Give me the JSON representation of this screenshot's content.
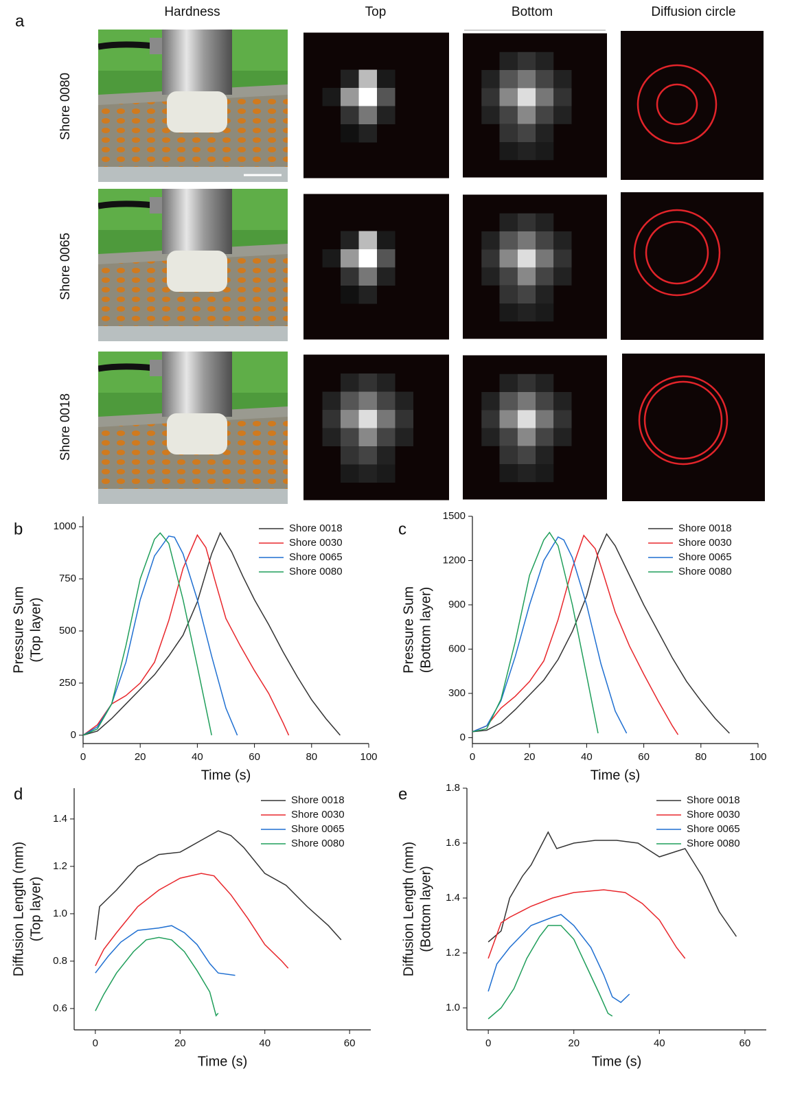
{
  "panel_a": {
    "label": "a",
    "columns": [
      "Hardness",
      "Top",
      "Bottom",
      "Diffusion circle"
    ],
    "rows": [
      "Shore 0080",
      "Shore 0065",
      "Shore 0018"
    ]
  },
  "chart_data": [
    {
      "type": "line",
      "panel_label": "b",
      "xlabel": "Time (s)",
      "ylabel": [
        "Pressure Sum",
        "(Top layer)"
      ],
      "xlim": [
        0,
        100
      ],
      "xticks": [
        0,
        20,
        40,
        60,
        80,
        100
      ],
      "ylim": [
        -40,
        1050
      ],
      "yticks": [
        0,
        250,
        500,
        750,
        1000
      ],
      "legend": "upper right",
      "series": [
        {
          "name": "Shore 0018",
          "color": "#333333",
          "x": [
            0,
            5,
            10,
            15,
            20,
            25,
            30,
            35,
            40,
            45,
            48,
            52,
            56,
            60,
            65,
            70,
            75,
            80,
            85,
            90
          ],
          "values": [
            0,
            20,
            80,
            150,
            220,
            290,
            380,
            480,
            640,
            870,
            970,
            880,
            760,
            650,
            530,
            400,
            280,
            170,
            80,
            0
          ]
        },
        {
          "name": "Shore 0030",
          "color": "#e8262b",
          "x": [
            0,
            5,
            10,
            15,
            20,
            25,
            30,
            35,
            40,
            43,
            46,
            50,
            55,
            60,
            65,
            70,
            72
          ],
          "values": [
            0,
            50,
            150,
            190,
            250,
            350,
            550,
            800,
            960,
            900,
            750,
            560,
            430,
            310,
            200,
            60,
            0
          ]
        },
        {
          "name": "Shore 0065",
          "color": "#1f6fd1",
          "x": [
            0,
            5,
            10,
            15,
            20,
            25,
            30,
            32,
            35,
            40,
            45,
            50,
            54
          ],
          "values": [
            0,
            40,
            150,
            350,
            650,
            860,
            955,
            950,
            870,
            650,
            380,
            130,
            0
          ]
        },
        {
          "name": "Shore 0080",
          "color": "#1f9e5a",
          "x": [
            0,
            5,
            10,
            15,
            20,
            25,
            27,
            30,
            35,
            40,
            45
          ],
          "values": [
            0,
            30,
            150,
            430,
            750,
            940,
            970,
            920,
            650,
            330,
            0
          ]
        }
      ]
    },
    {
      "type": "line",
      "panel_label": "c",
      "xlabel": "Time (s)",
      "ylabel": [
        "Pressure Sum",
        "(Bottom layer)"
      ],
      "xlim": [
        0,
        100
      ],
      "xticks": [
        0,
        20,
        40,
        60,
        80,
        100
      ],
      "ylim": [
        -40,
        1500
      ],
      "yticks": [
        0,
        300,
        600,
        900,
        1200,
        1500
      ],
      "legend": "upper right",
      "series": [
        {
          "name": "Shore 0018",
          "color": "#333333",
          "x": [
            0,
            5,
            10,
            15,
            20,
            25,
            30,
            35,
            40,
            44,
            47,
            50,
            55,
            60,
            65,
            70,
            75,
            80,
            85,
            90
          ],
          "values": [
            40,
            50,
            100,
            190,
            290,
            390,
            530,
            720,
            960,
            1250,
            1380,
            1300,
            1100,
            900,
            720,
            540,
            380,
            250,
            130,
            30
          ]
        },
        {
          "name": "Shore 0030",
          "color": "#e8262b",
          "x": [
            0,
            5,
            10,
            15,
            20,
            25,
            30,
            35,
            39,
            43,
            46,
            50,
            55,
            60,
            65,
            70,
            72
          ],
          "values": [
            40,
            80,
            200,
            280,
            380,
            520,
            800,
            1150,
            1370,
            1280,
            1100,
            850,
            620,
            430,
            250,
            80,
            20
          ]
        },
        {
          "name": "Shore 0065",
          "color": "#1f6fd1",
          "x": [
            0,
            5,
            10,
            15,
            20,
            25,
            30,
            32,
            35,
            40,
            45,
            50,
            54
          ],
          "values": [
            40,
            80,
            250,
            550,
            900,
            1200,
            1360,
            1340,
            1220,
            900,
            500,
            180,
            30
          ]
        },
        {
          "name": "Shore 0080",
          "color": "#1f9e5a",
          "x": [
            0,
            5,
            10,
            15,
            20,
            25,
            27,
            30,
            35,
            40,
            44
          ],
          "values": [
            40,
            60,
            260,
            650,
            1100,
            1340,
            1390,
            1300,
            900,
            420,
            30
          ]
        }
      ]
    },
    {
      "type": "line",
      "panel_label": "d",
      "xlabel": "Time (s)",
      "ylabel": [
        "Diffusion Length (mm)",
        "(Top layer)"
      ],
      "xlim": [
        -5,
        65
      ],
      "xticks": [
        0,
        20,
        40,
        60
      ],
      "ylim": [
        0.51,
        1.53
      ],
      "yticks": [
        0.6,
        0.8,
        {
          "value": 1,
          "label": "1.0"
        },
        1.2,
        1.4
      ],
      "legend": "upper right",
      "series": [
        {
          "name": "Shore 0018",
          "color": "#333333",
          "x": [
            0,
            1,
            5,
            10,
            15,
            20,
            22,
            25,
            29,
            32,
            35,
            40,
            45,
            50,
            55,
            58
          ],
          "values": [
            0.89,
            1.03,
            1.1,
            1.2,
            1.25,
            1.26,
            1.28,
            1.31,
            1.35,
            1.33,
            1.28,
            1.17,
            1.12,
            1.03,
            0.95,
            0.89
          ]
        },
        {
          "name": "Shore 0030",
          "color": "#e8262b",
          "x": [
            0,
            2,
            5,
            10,
            15,
            20,
            25,
            28,
            32,
            36,
            40,
            44,
            45.5
          ],
          "values": [
            0.78,
            0.85,
            0.92,
            1.03,
            1.1,
            1.15,
            1.17,
            1.16,
            1.08,
            0.98,
            0.87,
            0.8,
            0.77
          ]
        },
        {
          "name": "Shore 0065",
          "color": "#1f6fd1",
          "x": [
            0,
            3,
            6,
            10,
            15,
            18,
            21,
            24,
            27,
            29,
            33
          ],
          "values": [
            0.75,
            0.82,
            0.88,
            0.93,
            0.94,
            0.95,
            0.92,
            0.87,
            0.79,
            0.75,
            0.74
          ]
        },
        {
          "name": "Shore 0080",
          "color": "#1f9e5a",
          "x": [
            0,
            2,
            5,
            9,
            12,
            15,
            18,
            21,
            24,
            27,
            28.5,
            29
          ],
          "values": [
            0.59,
            0.66,
            0.75,
            0.84,
            0.89,
            0.9,
            0.89,
            0.84,
            0.76,
            0.67,
            0.57,
            0.58
          ]
        }
      ]
    },
    {
      "type": "line",
      "panel_label": "e",
      "xlabel": "Time (s)",
      "ylabel": [
        "Diffusion Length (mm)",
        "(Bottom layer)"
      ],
      "xlim": [
        -5,
        65
      ],
      "xticks": [
        0,
        20,
        40,
        60
      ],
      "ylim": [
        0.92,
        1.8
      ],
      "yticks": [
        {
          "value": 1,
          "label": "1.0"
        },
        1.2,
        1.4,
        1.6,
        1.8
      ],
      "legend": "upper right",
      "series": [
        {
          "name": "Shore 0018",
          "color": "#333333",
          "x": [
            0,
            3,
            5,
            8,
            10,
            12,
            14,
            16,
            20,
            25,
            30,
            35,
            40,
            44,
            46,
            50,
            54,
            58
          ],
          "values": [
            1.24,
            1.28,
            1.4,
            1.48,
            1.52,
            1.58,
            1.64,
            1.58,
            1.6,
            1.61,
            1.61,
            1.6,
            1.55,
            1.57,
            1.58,
            1.48,
            1.35,
            1.26
          ]
        },
        {
          "name": "Shore 0030",
          "color": "#e8262b",
          "x": [
            0,
            3,
            5,
            10,
            15,
            20,
            27,
            32,
            36,
            40,
            44,
            46
          ],
          "values": [
            1.18,
            1.31,
            1.33,
            1.37,
            1.4,
            1.42,
            1.43,
            1.42,
            1.38,
            1.32,
            1.22,
            1.18
          ]
        },
        {
          "name": "Shore 0065",
          "color": "#1f6fd1",
          "x": [
            0,
            2,
            5,
            10,
            15,
            17,
            20,
            24,
            27,
            29,
            31,
            33
          ],
          "values": [
            1.06,
            1.16,
            1.22,
            1.3,
            1.33,
            1.34,
            1.3,
            1.22,
            1.12,
            1.04,
            1.02,
            1.05
          ]
        },
        {
          "name": "Shore 0080",
          "color": "#1f9e5a",
          "x": [
            0,
            3,
            6,
            9,
            12,
            14,
            17,
            20,
            23,
            26,
            28,
            29
          ],
          "values": [
            0.96,
            1.0,
            1.07,
            1.18,
            1.26,
            1.3,
            1.3,
            1.25,
            1.15,
            1.05,
            0.98,
            0.97
          ]
        }
      ]
    }
  ]
}
